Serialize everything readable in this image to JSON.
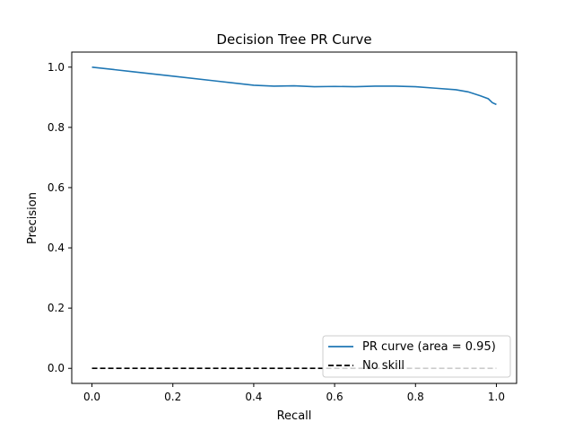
{
  "chart_data": {
    "type": "line",
    "title": "Decision Tree PR Curve",
    "xlabel": "Recall",
    "ylabel": "Precision",
    "xlim": [
      -0.05,
      1.05
    ],
    "ylim": [
      -0.05,
      1.05
    ],
    "xticks": [
      0.0,
      0.2,
      0.4,
      0.6,
      0.8,
      1.0
    ],
    "xtick_labels": [
      "0.0",
      "0.2",
      "0.4",
      "0.6",
      "0.8",
      "1.0"
    ],
    "yticks": [
      0.0,
      0.2,
      0.4,
      0.6,
      0.8,
      1.0
    ],
    "ytick_labels": [
      "0.0",
      "0.2",
      "0.4",
      "0.6",
      "0.8",
      "1.0"
    ],
    "grid": false,
    "legend_position": "lower-right",
    "series": [
      {
        "name": "PR curve (area = 0.95)",
        "color": "#1f77b4",
        "style": "solid",
        "x": [
          0.0,
          0.1,
          0.2,
          0.3,
          0.4,
          0.45,
          0.5,
          0.55,
          0.6,
          0.65,
          0.7,
          0.75,
          0.8,
          0.85,
          0.9,
          0.93,
          0.96,
          0.98,
          0.99,
          1.0
        ],
        "y": [
          1.0,
          0.985,
          0.97,
          0.955,
          0.94,
          0.937,
          0.938,
          0.935,
          0.936,
          0.935,
          0.937,
          0.937,
          0.935,
          0.93,
          0.925,
          0.918,
          0.905,
          0.895,
          0.882,
          0.876
        ]
      },
      {
        "name": "No skill",
        "color": "#000000",
        "style": "dashed",
        "x": [
          0.0,
          1.0
        ],
        "y": [
          0.0,
          0.0
        ]
      }
    ]
  }
}
